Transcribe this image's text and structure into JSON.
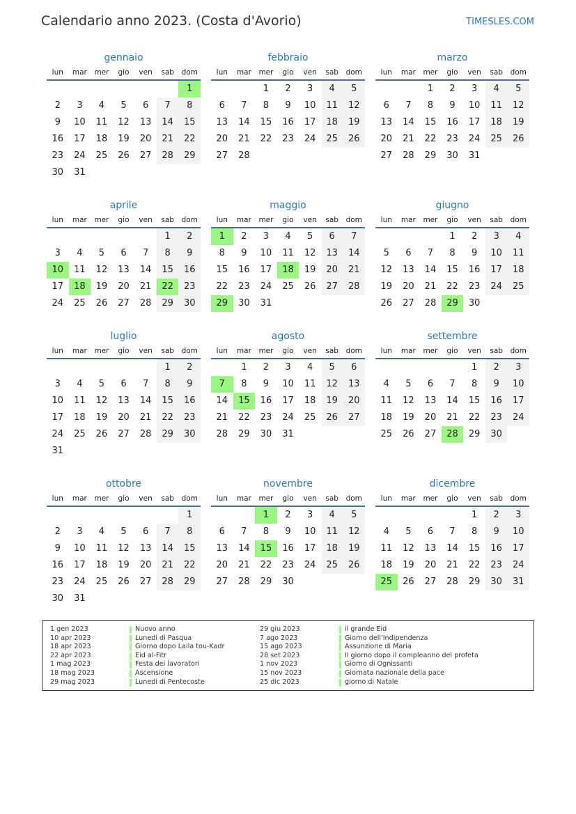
{
  "header": {
    "title": "Calendario anno 2023. (Costa d'Avorio)",
    "brand": "TIMESLES.COM"
  },
  "year": 2023,
  "colors": {
    "accent": "#2a7abf",
    "holiday": "#9af782",
    "weekend": "#f2f2f2"
  },
  "weekdays": [
    "lun",
    "mar",
    "mer",
    "gio",
    "ven",
    "sab",
    "dom"
  ],
  "months": [
    "gennaio",
    "febbraio",
    "marzo",
    "aprile",
    "maggio",
    "giugno",
    "luglio",
    "agosto",
    "settembre",
    "ottobre",
    "novembre",
    "dicembre"
  ],
  "holiday_days": {
    "0": [
      1
    ],
    "3": [
      10,
      18,
      22
    ],
    "4": [
      1,
      18,
      29
    ],
    "5": [
      29
    ],
    "7": [
      7,
      15
    ],
    "8": [
      28
    ],
    "10": [
      1,
      15
    ],
    "11": [
      25
    ]
  },
  "holidays": [
    {
      "date": "1 gen 2023",
      "name": "Nuovo anno"
    },
    {
      "date": "10 apr 2023",
      "name": "Lunedi di Pasqua"
    },
    {
      "date": "18 apr 2023",
      "name": "Giorno dopo Laila tou-Kadr"
    },
    {
      "date": "22 apr 2023",
      "name": "Eid al-Fitr"
    },
    {
      "date": "1 mag 2023",
      "name": "Festa dei lavoratori"
    },
    {
      "date": "18 mag 2023",
      "name": "Ascensione"
    },
    {
      "date": "29 mag 2023",
      "name": "Lunedi di Pentecoste"
    },
    {
      "date": "29 giu 2023",
      "name": "il grande Eid"
    },
    {
      "date": "7 ago 2023",
      "name": "Giorno dell'Indipendenza"
    },
    {
      "date": "15 ago 2023",
      "name": "Assunzione di Maria"
    },
    {
      "date": "28 set 2023",
      "name": "Il giorno dopo il compleanno del profeta"
    },
    {
      "date": "1 nov 2023",
      "name": "Giorno di Ognissanti"
    },
    {
      "date": "15 nov 2023",
      "name": "Giornata nazionale della pace"
    },
    {
      "date": "25 dic 2023",
      "name": "giorno di Natale"
    }
  ]
}
